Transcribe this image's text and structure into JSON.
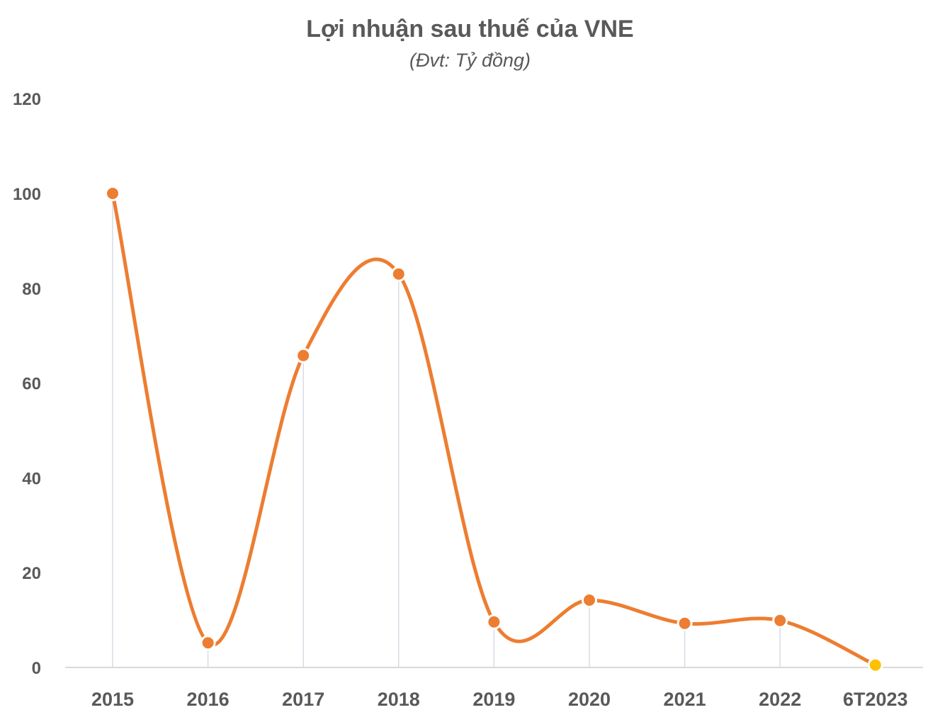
{
  "chart_data": {
    "type": "line",
    "title": "Lợi nhuận sau thuế của VNE",
    "subtitle": "(Đvt: Tỷ đồng)",
    "xlabel": "",
    "ylabel": "",
    "categories": [
      "2015",
      "2016",
      "2017",
      "2018",
      "2019",
      "2020",
      "2021",
      "2022",
      "6T2023"
    ],
    "series": [
      {
        "name": "Lợi nhuận sau thuế",
        "values": [
          100,
          5.2,
          65.8,
          83,
          9.6,
          14.2,
          9.3,
          9.9,
          0.5
        ],
        "color": "#ED7D31",
        "smooth": true
      }
    ],
    "highlight_point": {
      "category": "6T2023",
      "color": "#FFC000"
    },
    "ylim": [
      0,
      120
    ],
    "yticks": [
      0,
      20,
      40,
      60,
      80,
      100,
      120
    ],
    "grid": false,
    "drop_lines": true,
    "legend": "none"
  },
  "colors": {
    "line": "#ED7D31",
    "marker": "#ED7D31",
    "highlight_marker": "#FFC000",
    "drop_line": "#D6DCE5",
    "axis": "#D9D9D9",
    "text": "#595959"
  }
}
